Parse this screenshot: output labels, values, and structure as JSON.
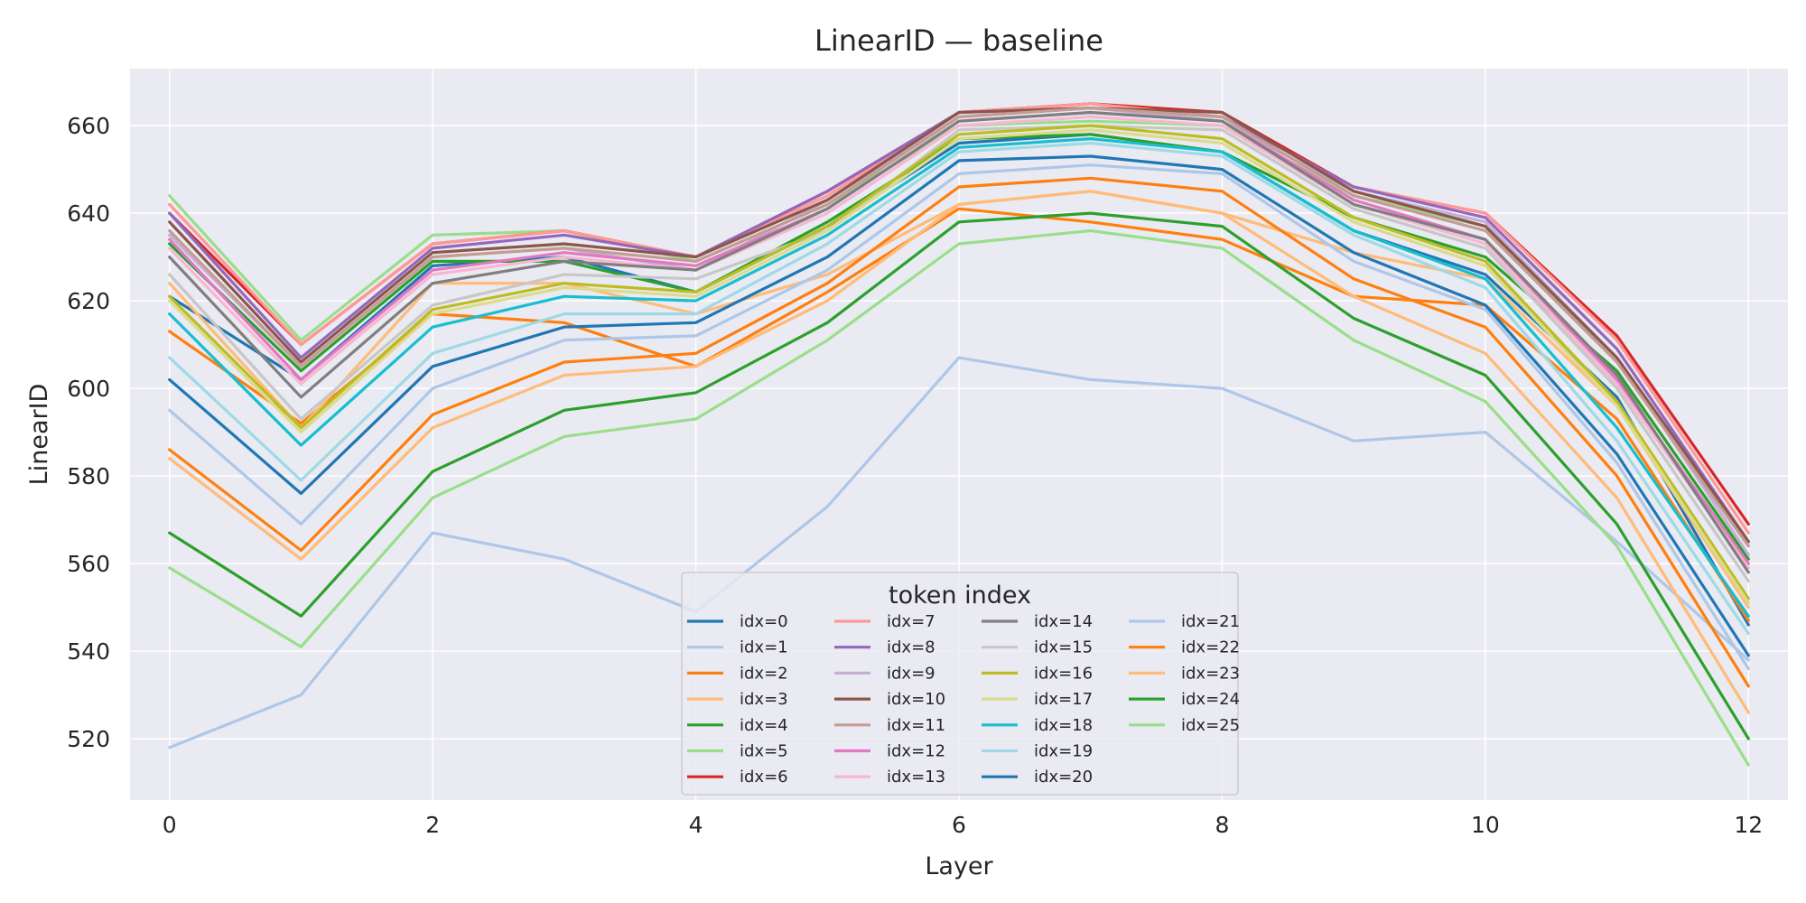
{
  "chart_data": {
    "type": "line",
    "title": "LinearID — baseline",
    "xlabel": "Layer",
    "ylabel": "LinearID",
    "xlim": [
      -0.3,
      12.3
    ],
    "ylim": [
      506,
      673
    ],
    "xticks": [
      0,
      2,
      4,
      6,
      8,
      10,
      12
    ],
    "yticks": [
      520,
      540,
      560,
      580,
      600,
      620,
      640,
      660
    ],
    "grid": true,
    "legend": {
      "title": "token index",
      "placement": "lower center",
      "columns": 4
    },
    "x": [
      0,
      1,
      2,
      3,
      4,
      5,
      6,
      7,
      8,
      9,
      10,
      11,
      12
    ],
    "series": [
      {
        "name": "idx=0",
        "color": "#1f77b4",
        "values": [
          621,
          602,
          628,
          630,
          622,
          637,
          656,
          658,
          654,
          636,
          626,
          598,
          546
        ]
      },
      {
        "name": "idx=1",
        "color": "#aec7e8",
        "values": [
          518,
          530,
          567,
          561,
          549,
          573,
          607,
          602,
          600,
          588,
          590,
          565,
          538
        ]
      },
      {
        "name": "idx=2",
        "color": "#ff7f0e",
        "values": [
          613,
          592,
          617,
          615,
          605,
          622,
          641,
          638,
          634,
          621,
          619,
          593,
          547
        ]
      },
      {
        "name": "idx=3",
        "color": "#ffbb78",
        "values": [
          624,
          591,
          624,
          624,
          617,
          626,
          642,
          645,
          640,
          631,
          625,
          596,
          550
        ]
      },
      {
        "name": "idx=4",
        "color": "#2ca02c",
        "values": [
          633,
          604,
          629,
          629,
          622,
          638,
          657,
          658,
          654,
          639,
          630,
          604,
          561
        ]
      },
      {
        "name": "idx=5",
        "color": "#98df8a",
        "values": [
          644,
          611,
          635,
          636,
          629,
          642,
          660,
          661,
          660,
          644,
          637,
          606,
          564
        ]
      },
      {
        "name": "idx=6",
        "color": "#d62728",
        "values": [
          640,
          610,
          633,
          636,
          630,
          645,
          663,
          665,
          663,
          646,
          640,
          612,
          569
        ]
      },
      {
        "name": "idx=7",
        "color": "#ff9896",
        "values": [
          642,
          610,
          633,
          636,
          630,
          644,
          663,
          665,
          662,
          646,
          640,
          611,
          567
        ]
      },
      {
        "name": "idx=8",
        "color": "#9467bd",
        "values": [
          640,
          607,
          632,
          635,
          630,
          645,
          663,
          664,
          662,
          646,
          639,
          609,
          565
        ]
      },
      {
        "name": "idx=9",
        "color": "#c5b0d5",
        "values": [
          635,
          605,
          630,
          632,
          627,
          643,
          662,
          664,
          661,
          645,
          638,
          607,
          562
        ]
      },
      {
        "name": "idx=10",
        "color": "#8c564b",
        "values": [
          638,
          606,
          631,
          633,
          630,
          643,
          663,
          664,
          663,
          645,
          637,
          607,
          565
        ]
      },
      {
        "name": "idx=11",
        "color": "#c49c94",
        "values": [
          636,
          605,
          630,
          632,
          629,
          642,
          662,
          664,
          662,
          644,
          636,
          606,
          564
        ]
      },
      {
        "name": "idx=12",
        "color": "#e377c2",
        "values": [
          634,
          602,
          627,
          631,
          628,
          641,
          661,
          663,
          661,
          643,
          634,
          602,
          560
        ]
      },
      {
        "name": "idx=13",
        "color": "#f7b6d2",
        "values": [
          632,
          601,
          626,
          630,
          627,
          640,
          660,
          662,
          660,
          642,
          633,
          601,
          559
        ]
      },
      {
        "name": "idx=14",
        "color": "#7f7f7f",
        "values": [
          630,
          598,
          624,
          629,
          627,
          641,
          661,
          663,
          661,
          642,
          634,
          603,
          558
        ]
      },
      {
        "name": "idx=15",
        "color": "#c7c7c7",
        "values": [
          626,
          593,
          619,
          626,
          625,
          636,
          659,
          660,
          659,
          641,
          632,
          600,
          556
        ]
      },
      {
        "name": "idx=16",
        "color": "#bcbd22",
        "values": [
          621,
          591,
          618,
          624,
          622,
          637,
          658,
          660,
          657,
          639,
          629,
          597,
          552
        ]
      },
      {
        "name": "idx=17",
        "color": "#dbdb8d",
        "values": [
          620,
          590,
          617,
          623,
          621,
          636,
          657,
          659,
          656,
          638,
          628,
          596,
          551
        ]
      },
      {
        "name": "idx=18",
        "color": "#17becf",
        "values": [
          617,
          587,
          614,
          621,
          620,
          635,
          655,
          657,
          654,
          636,
          625,
          591,
          548
        ]
      },
      {
        "name": "idx=19",
        "color": "#9edae5",
        "values": [
          607,
          579,
          608,
          617,
          617,
          633,
          654,
          656,
          653,
          635,
          623,
          588,
          544
        ]
      },
      {
        "name": "idx=20",
        "color": "#1f77b4",
        "values": [
          602,
          576,
          605,
          614,
          615,
          630,
          652,
          653,
          650,
          631,
          619,
          585,
          539
        ]
      },
      {
        "name": "idx=21",
        "color": "#aec7e8",
        "values": [
          595,
          569,
          600,
          611,
          612,
          627,
          649,
          651,
          649,
          629,
          618,
          583,
          536
        ]
      },
      {
        "name": "idx=22",
        "color": "#ff7f0e",
        "values": [
          586,
          563,
          594,
          606,
          608,
          624,
          646,
          648,
          645,
          625,
          614,
          580,
          532
        ]
      },
      {
        "name": "idx=23",
        "color": "#ffbb78",
        "values": [
          584,
          561,
          591,
          603,
          605,
          620,
          642,
          645,
          640,
          621,
          608,
          575,
          526
        ]
      },
      {
        "name": "idx=24",
        "color": "#2ca02c",
        "values": [
          567,
          548,
          581,
          595,
          599,
          615,
          638,
          640,
          637,
          616,
          603,
          569,
          520
        ]
      },
      {
        "name": "idx=25",
        "color": "#98df8a",
        "values": [
          559,
          541,
          575,
          589,
          593,
          611,
          633,
          636,
          632,
          611,
          597,
          564,
          514
        ]
      }
    ]
  }
}
